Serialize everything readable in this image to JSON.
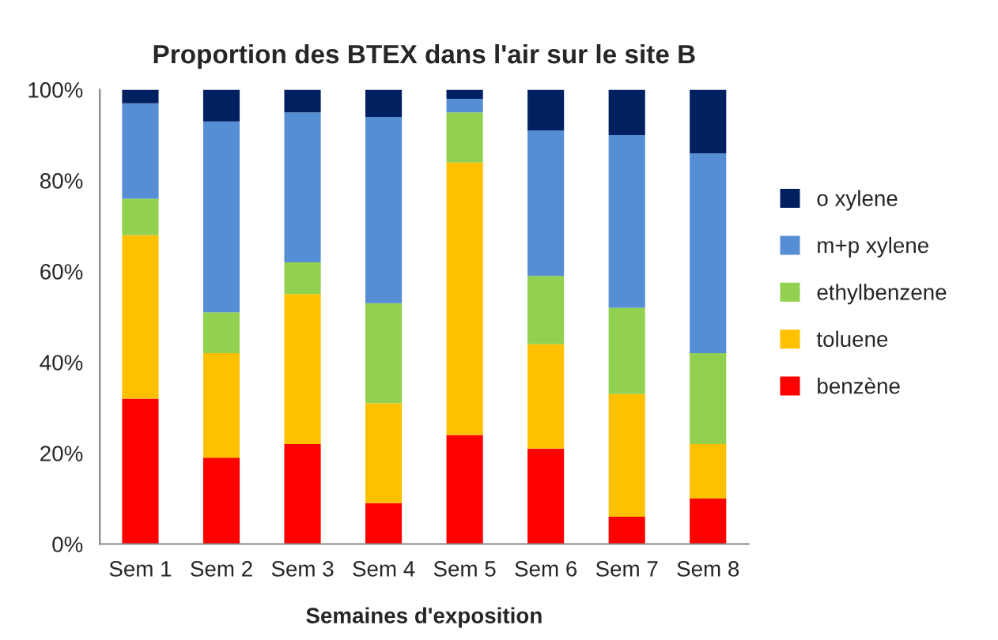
{
  "chart_data": {
    "type": "bar",
    "stacked": true,
    "title": "Proportion des BTEX dans l'air sur le site B",
    "xlabel": "Semaines d'exposition",
    "categories": [
      "Sem 1",
      "Sem 2",
      "Sem 3",
      "Sem 4",
      "Sem 5",
      "Sem 6",
      "Sem 7",
      "Sem 8"
    ],
    "series": [
      {
        "name": "benzène",
        "color": "#ff0000",
        "values": [
          32,
          19,
          22,
          9,
          24,
          21,
          6,
          10
        ]
      },
      {
        "name": "toluene",
        "color": "#ffc000",
        "values": [
          36,
          23,
          33,
          22,
          60,
          23,
          27,
          12
        ]
      },
      {
        "name": "ethylbenzene",
        "color": "#92d050",
        "values": [
          8,
          9,
          7,
          22,
          11,
          15,
          19,
          20
        ]
      },
      {
        "name": "m+p xylene",
        "color": "#558ed5",
        "values": [
          21,
          42,
          33,
          41,
          3,
          32,
          38,
          44
        ]
      },
      {
        "name": "o xylene",
        "color": "#002060",
        "values": [
          3,
          7,
          5,
          6,
          2,
          9,
          10,
          14
        ]
      }
    ],
    "ylim": [
      0,
      100
    ],
    "yticks": [
      {
        "value": 0,
        "label": "0%"
      },
      {
        "value": 20,
        "label": "20%"
      },
      {
        "value": 40,
        "label": "40%"
      },
      {
        "value": 60,
        "label": "60%"
      },
      {
        "value": 80,
        "label": "80%"
      },
      {
        "value": 100,
        "label": "100%"
      }
    ],
    "legend": "right"
  }
}
